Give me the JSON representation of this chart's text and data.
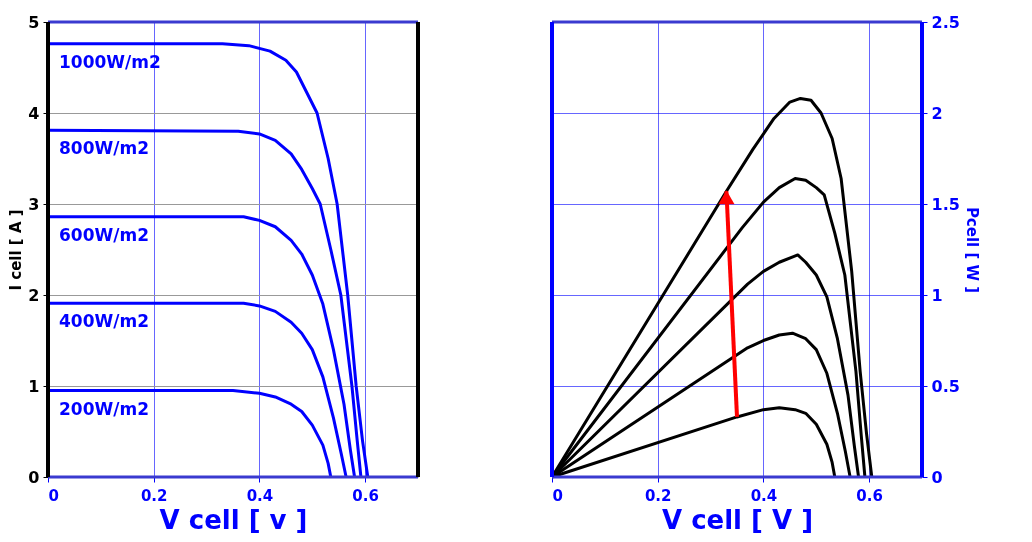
{
  "chart_data": [
    {
      "type": "line",
      "xlabel": "V cell [ v ]",
      "ylabel": "I cell [ A ]",
      "xlim": [
        0,
        0.7
      ],
      "ylim": [
        0,
        5
      ],
      "xticks": [
        0,
        0.2,
        0.4,
        0.6
      ],
      "yticks": [
        0,
        1,
        2,
        3,
        4,
        5
      ],
      "grid": true,
      "legend": false,
      "marker": "none",
      "line_style": "solid",
      "series": [
        {
          "name": "1000W/m2",
          "color": "#0000ff",
          "x": [
            0,
            0.33,
            0.38,
            0.42,
            0.45,
            0.47,
            0.49,
            0.509,
            0.53,
            0.547,
            0.567,
            0.583,
            0.595,
            0.605
          ],
          "values": [
            4.76,
            4.76,
            4.74,
            4.68,
            4.58,
            4.45,
            4.22,
            4.0,
            3.5,
            3.0,
            2.0,
            1.0,
            0.4,
            0
          ]
        },
        {
          "name": "800W/m2",
          "color": "#0000ff",
          "x": [
            0,
            0.36,
            0.4,
            0.43,
            0.46,
            0.48,
            0.5,
            0.515,
            0.535,
            0.554,
            0.575,
            0.585,
            0.592
          ],
          "values": [
            3.81,
            3.8,
            3.77,
            3.7,
            3.55,
            3.38,
            3.17,
            3.0,
            2.5,
            2.0,
            1.0,
            0.4,
            0
          ]
        },
        {
          "name": "600W/m2",
          "color": "#0000ff",
          "x": [
            0,
            0.37,
            0.4,
            0.43,
            0.46,
            0.48,
            0.5,
            0.52,
            0.54,
            0.56,
            0.572,
            0.58
          ],
          "values": [
            2.86,
            2.86,
            2.82,
            2.75,
            2.6,
            2.45,
            2.22,
            1.9,
            1.4,
            0.8,
            0.3,
            0
          ]
        },
        {
          "name": "400W/m2",
          "color": "#0000ff",
          "x": [
            0,
            0.37,
            0.4,
            0.43,
            0.46,
            0.48,
            0.5,
            0.52,
            0.54,
            0.555,
            0.564
          ],
          "values": [
            1.91,
            1.91,
            1.88,
            1.82,
            1.7,
            1.58,
            1.4,
            1.1,
            0.65,
            0.25,
            0
          ]
        },
        {
          "name": "200W/m2",
          "color": "#0000ff",
          "x": [
            0,
            0.35,
            0.4,
            0.43,
            0.46,
            0.48,
            0.5,
            0.52,
            0.53,
            0.535
          ],
          "values": [
            0.95,
            0.95,
            0.92,
            0.88,
            0.8,
            0.72,
            0.57,
            0.35,
            0.15,
            0
          ]
        }
      ]
    },
    {
      "type": "line",
      "xlabel": "V cell [ V ]",
      "ylabel": "Pcell [ W ]",
      "xlim": [
        0,
        0.7
      ],
      "ylim": [
        0,
        2.5
      ],
      "xticks": [
        0,
        0.2,
        0.4,
        0.6
      ],
      "yticks": [
        0,
        0.5,
        1,
        1.5,
        2,
        2.5
      ],
      "grid": true,
      "legend": false,
      "marker": "none",
      "line_style": "solid",
      "series": [
        {
          "color": "#000000",
          "x": [
            0,
            0.33,
            0.38,
            0.42,
            0.45,
            0.47,
            0.49,
            0.509,
            0.53,
            0.547,
            0.567,
            0.583,
            0.595,
            0.605
          ],
          "values": [
            0,
            1.57,
            1.8,
            1.97,
            2.06,
            2.08,
            2.07,
            2.0,
            1.86,
            1.64,
            1.13,
            0.58,
            0.24,
            0
          ]
        },
        {
          "color": "#000000",
          "x": [
            0,
            0.36,
            0.4,
            0.43,
            0.46,
            0.48,
            0.5,
            0.515,
            0.535,
            0.554,
            0.575,
            0.585,
            0.592
          ],
          "values": [
            0,
            1.37,
            1.51,
            1.59,
            1.64,
            1.63,
            1.59,
            1.55,
            1.34,
            1.11,
            0.58,
            0.23,
            0
          ]
        },
        {
          "color": "#000000",
          "x": [
            0,
            0.37,
            0.4,
            0.43,
            0.465,
            0.48,
            0.5,
            0.52,
            0.54,
            0.56,
            0.572,
            0.58
          ],
          "values": [
            0,
            1.06,
            1.13,
            1.18,
            1.22,
            1.18,
            1.11,
            0.99,
            0.76,
            0.45,
            0.17,
            0
          ]
        },
        {
          "color": "#000000",
          "x": [
            0,
            0.37,
            0.4,
            0.43,
            0.455,
            0.48,
            0.5,
            0.52,
            0.54,
            0.555,
            0.564
          ],
          "values": [
            0,
            0.71,
            0.75,
            0.78,
            0.79,
            0.76,
            0.7,
            0.57,
            0.35,
            0.14,
            0
          ]
        },
        {
          "color": "#000000",
          "x": [
            0,
            0.35,
            0.4,
            0.43,
            0.46,
            0.48,
            0.5,
            0.52,
            0.53,
            0.535
          ],
          "values": [
            0,
            0.33,
            0.37,
            0.38,
            0.37,
            0.35,
            0.29,
            0.18,
            0.08,
            0
          ]
        }
      ]
    }
  ]
}
